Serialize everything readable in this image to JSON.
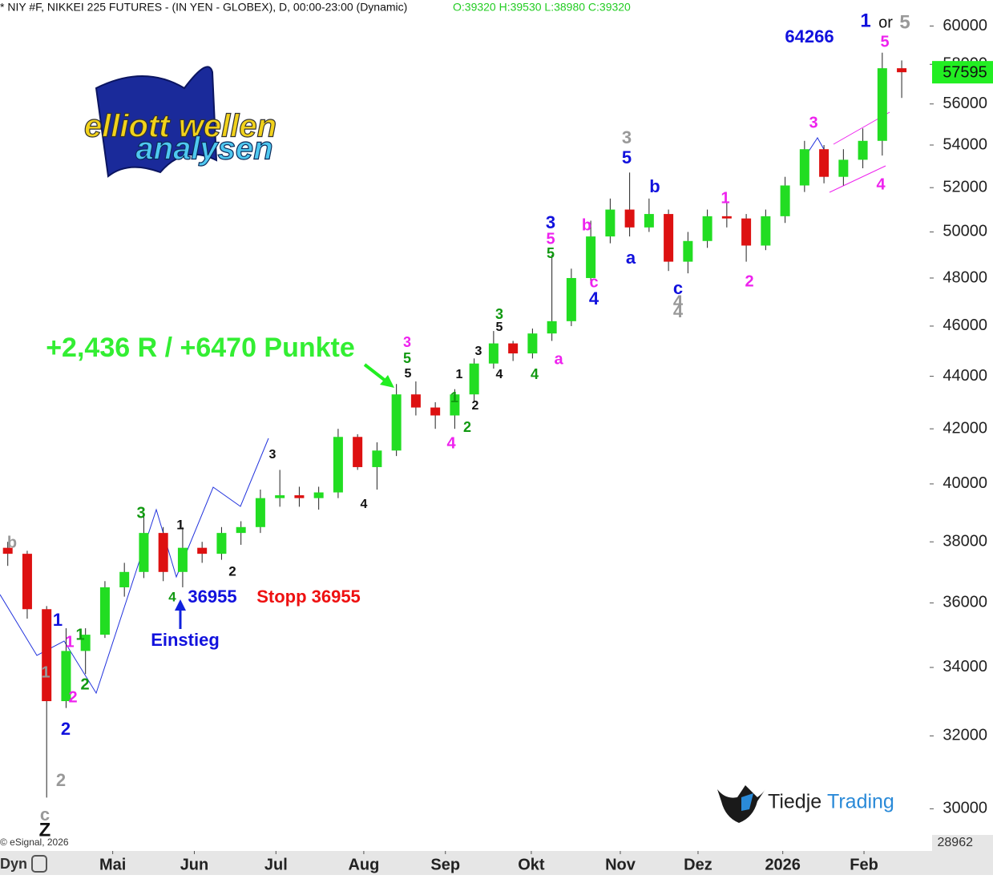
{
  "chart_data": {
    "type": "candlestick",
    "title": "* NIY #F, NIKKEI 225 FUTURES - (IN YEN - GLOBEX), D, 00:00-23:00 (Dynamic)",
    "ohlc_text": "O:39320 H:39530 L:38980 C:39320",
    "log_scale": true,
    "up_color": "#22dd22",
    "down_color": "#dd1111",
    "x": [
      2,
      7,
      12,
      17,
      22,
      27,
      32,
      37,
      42,
      47,
      52,
      57,
      62,
      67,
      72,
      77,
      82,
      87,
      92,
      97,
      102,
      107,
      112,
      117,
      122,
      127,
      132,
      137,
      142,
      147,
      152,
      157,
      162,
      167,
      172,
      177,
      182,
      187,
      192,
      197,
      202,
      207,
      212,
      217,
      222,
      227,
      232
    ],
    "open": [
      37800,
      37600,
      35800,
      33000,
      34500,
      35000,
      36500,
      37000,
      38300,
      37000,
      37800,
      37600,
      38300,
      38500,
      39500,
      39600,
      39500,
      39700,
      41700,
      40600,
      41200,
      43300,
      42800,
      42500,
      43300,
      44500,
      45300,
      44900,
      45700,
      46200,
      48000,
      49800,
      51000,
      50200,
      50800,
      48700,
      49600,
      50700,
      50600,
      49400,
      50700,
      52100,
      53800,
      52500,
      53300,
      54200,
      57800
    ],
    "high": [
      38000,
      37700,
      35900,
      35200,
      35200,
      36700,
      37300,
      39000,
      38500,
      38500,
      38000,
      38500,
      38700,
      39800,
      40500,
      39900,
      39900,
      42000,
      41800,
      41500,
      43700,
      43800,
      43000,
      43500,
      44700,
      45800,
      45400,
      45900,
      49000,
      48400,
      50500,
      51500,
      52700,
      51500,
      51000,
      50000,
      51000,
      51300,
      50800,
      51000,
      52500,
      54200,
      54000,
      53800,
      54800,
      58600,
      58200
    ],
    "low": [
      37200,
      35500,
      30300,
      32800,
      33800,
      34900,
      36200,
      36800,
      36700,
      36500,
      37300,
      37400,
      37900,
      38300,
      39200,
      39200,
      39100,
      39500,
      40500,
      39800,
      41000,
      42500,
      42000,
      42000,
      43000,
      44300,
      44600,
      44700,
      45400,
      46000,
      47800,
      49500,
      49800,
      50000,
      48300,
      48200,
      49300,
      50200,
      48700,
      49200,
      50400,
      51800,
      52200,
      52100,
      52900,
      53500,
      56300
    ],
    "close": [
      37600,
      35800,
      33000,
      34500,
      35000,
      36500,
      37000,
      38300,
      37000,
      37800,
      37600,
      38300,
      38500,
      39500,
      39600,
      39500,
      39700,
      41700,
      40600,
      41200,
      43300,
      42800,
      42500,
      43300,
      44500,
      45300,
      44900,
      45700,
      46200,
      48000,
      49800,
      51000,
      50200,
      50800,
      48700,
      49600,
      50700,
      50600,
      49400,
      50700,
      52100,
      53800,
      52500,
      53300,
      54200,
      57800,
      57595
    ],
    "xlim": [
      0,
      239.2
    ],
    "xticks": [
      {
        "value": 29,
        "label": "Mai"
      },
      {
        "value": 50,
        "label": "Jun"
      },
      {
        "value": 71,
        "label": "Jul"
      },
      {
        "value": 93.6,
        "label": "Aug"
      },
      {
        "value": 114.6,
        "label": "Sep"
      },
      {
        "value": 136.7,
        "label": "Okt"
      },
      {
        "value": 159.6,
        "label": "Nov"
      },
      {
        "value": 179.6,
        "label": "Dez"
      },
      {
        "value": 201.4,
        "label": "2026"
      },
      {
        "value": 222.3,
        "label": "Feb"
      }
    ],
    "ylim": [
      28900,
      61400
    ],
    "yticks": [
      30000,
      32000,
      34000,
      36000,
      38000,
      40000,
      42000,
      44000,
      46000,
      48000,
      50000,
      52000,
      54000,
      56000,
      58000,
      60000
    ],
    "last_price": 57595,
    "scale_low": 28962,
    "axis_left_label": "Dyn",
    "copyright": "© eSignal, 2026",
    "logo": {
      "line1": "elliott wellen",
      "line2": "analysen",
      "brand1": "Tiedje",
      "brand2": "Trading"
    },
    "annotations": [
      "b",
      "1",
      "1",
      "1",
      "1",
      "2",
      "2",
      "2",
      "2",
      "c",
      "Z",
      "3",
      "1",
      "2",
      "4",
      "36955",
      "Stopp 36955",
      "Einstieg",
      "3",
      "4",
      "+2,436 R / +6470 Punkte",
      "3",
      "5",
      "5",
      "4",
      "1",
      "2",
      "1",
      "2",
      "3",
      "5",
      "3",
      "4",
      "4",
      "a",
      "3",
      "5",
      "5",
      "b",
      "c",
      "4",
      "3",
      "5",
      "a",
      "b",
      "c",
      "4",
      "4",
      "1",
      "2",
      "3",
      "4",
      "5",
      "64266",
      "1",
      "or",
      "5"
    ]
  }
}
